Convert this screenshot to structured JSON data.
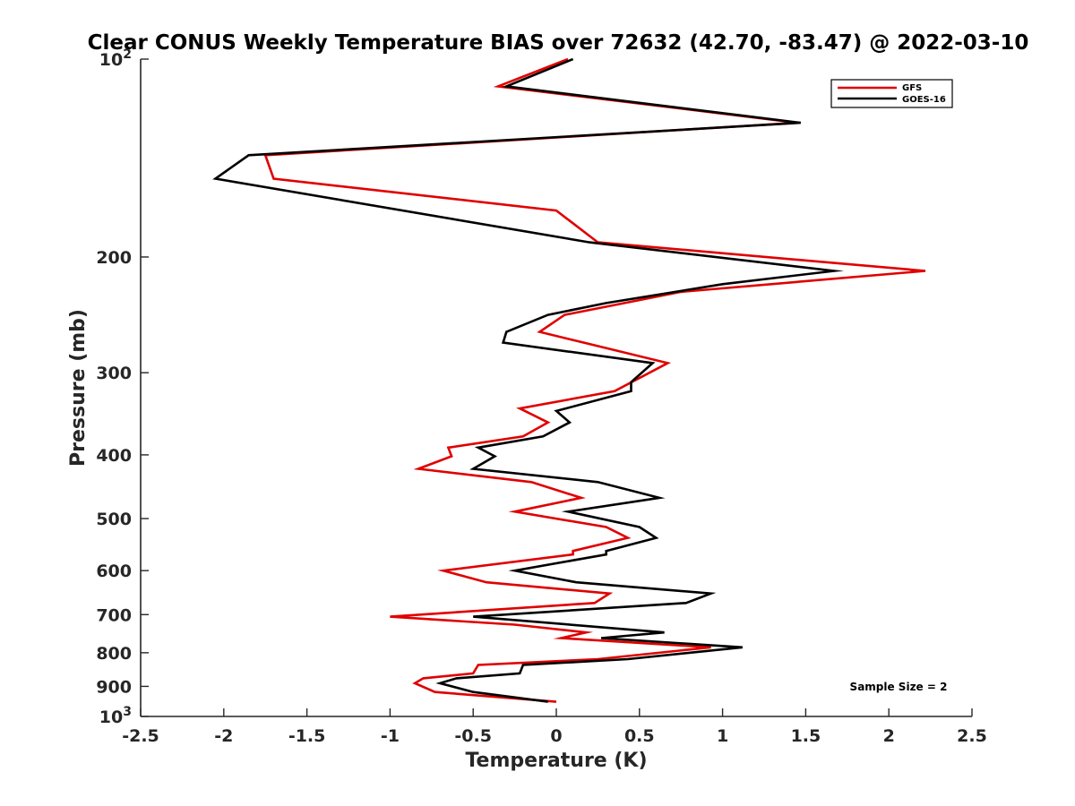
{
  "chart_data": {
    "type": "line",
    "title": "Clear CONUS Weekly Temperature BIAS over 72632 (42.70, -83.47) @ 2022-03-10",
    "xlabel": "Temperature (K)",
    "ylabel": "Pressure (mb)",
    "xlim": [
      -2.5,
      2.5
    ],
    "ylim": [
      100,
      1000
    ],
    "y_scale": "log",
    "y_reversed": true,
    "grid": false,
    "legend_position": "top-right",
    "x_ticks": [
      -2.5,
      -2,
      -1.5,
      -1,
      -0.5,
      0,
      0.5,
      1,
      1.5,
      2,
      2.5
    ],
    "x_tick_labels": [
      "-2.5",
      "-2",
      "-1.5",
      "-1",
      "-0.5",
      "0",
      "0.5",
      "1",
      "1.5",
      "2",
      "2.5"
    ],
    "y_ticks": [
      {
        "value": 100,
        "base": "10",
        "exp": "2"
      },
      {
        "value": 200,
        "label": "200"
      },
      {
        "value": 300,
        "label": "300"
      },
      {
        "value": 400,
        "label": "400"
      },
      {
        "value": 500,
        "label": "500"
      },
      {
        "value": 600,
        "label": "600"
      },
      {
        "value": 700,
        "label": "700"
      },
      {
        "value": 800,
        "label": "800"
      },
      {
        "value": 900,
        "label": "900"
      },
      {
        "value": 1000,
        "base": "10",
        "exp": "3"
      }
    ],
    "annotation": "Sample Size = 2",
    "series": [
      {
        "name": "GFS",
        "color": "#e00000",
        "points": [
          [
            0.07,
            100
          ],
          [
            -0.35,
            110
          ],
          [
            1.45,
            125
          ],
          [
            -1.75,
            140
          ],
          [
            -1.7,
            152
          ],
          [
            0.0,
            170
          ],
          [
            0.25,
            190
          ],
          [
            2.22,
            210
          ],
          [
            0.75,
            226
          ],
          [
            0.05,
            245
          ],
          [
            -0.1,
            260
          ],
          [
            0.67,
            290
          ],
          [
            0.35,
            320
          ],
          [
            -0.22,
            340
          ],
          [
            -0.05,
            357
          ],
          [
            -0.2,
            375
          ],
          [
            -0.65,
            390
          ],
          [
            -0.63,
            402
          ],
          [
            -0.83,
            420
          ],
          [
            -0.15,
            440
          ],
          [
            0.15,
            465
          ],
          [
            -0.25,
            488
          ],
          [
            0.3,
            515
          ],
          [
            0.43,
            535
          ],
          [
            0.1,
            560
          ],
          [
            0.1,
            567
          ],
          [
            -0.68,
            600
          ],
          [
            -0.42,
            625
          ],
          [
            0.32,
            650
          ],
          [
            0.23,
            672
          ],
          [
            -1.0,
            705
          ],
          [
            -0.25,
            725
          ],
          [
            0.18,
            745
          ],
          [
            0.03,
            760
          ],
          [
            0.93,
            785
          ],
          [
            0.25,
            818
          ],
          [
            -0.47,
            835
          ],
          [
            -0.5,
            860
          ],
          [
            -0.8,
            875
          ],
          [
            -0.85,
            890
          ],
          [
            -0.73,
            918
          ],
          [
            0.0,
            950
          ]
        ]
      },
      {
        "name": "GOES-16",
        "color": "#000000",
        "points": [
          [
            0.1,
            100
          ],
          [
            -0.3,
            110
          ],
          [
            1.47,
            125
          ],
          [
            -1.85,
            140
          ],
          [
            -2.05,
            152
          ],
          [
            0.2,
            190
          ],
          [
            1.67,
            210
          ],
          [
            1.0,
            220
          ],
          [
            0.3,
            235
          ],
          [
            -0.05,
            245
          ],
          [
            -0.3,
            260
          ],
          [
            -0.32,
            270
          ],
          [
            0.58,
            290
          ],
          [
            0.45,
            310
          ],
          [
            0.45,
            320
          ],
          [
            0.0,
            343
          ],
          [
            0.08,
            357
          ],
          [
            -0.08,
            375
          ],
          [
            -0.47,
            390
          ],
          [
            -0.37,
            402
          ],
          [
            -0.5,
            420
          ],
          [
            0.25,
            440
          ],
          [
            0.62,
            465
          ],
          [
            0.07,
            488
          ],
          [
            0.5,
            515
          ],
          [
            0.6,
            535
          ],
          [
            0.3,
            560
          ],
          [
            0.3,
            567
          ],
          [
            -0.25,
            600
          ],
          [
            0.12,
            625
          ],
          [
            0.93,
            650
          ],
          [
            0.78,
            672
          ],
          [
            -0.5,
            705
          ],
          [
            0.65,
            745
          ],
          [
            0.27,
            760
          ],
          [
            1.12,
            785
          ],
          [
            0.43,
            818
          ],
          [
            -0.2,
            835
          ],
          [
            -0.22,
            860
          ],
          [
            -0.6,
            875
          ],
          [
            -0.7,
            890
          ],
          [
            -0.5,
            918
          ],
          [
            -0.05,
            950
          ]
        ]
      }
    ]
  }
}
